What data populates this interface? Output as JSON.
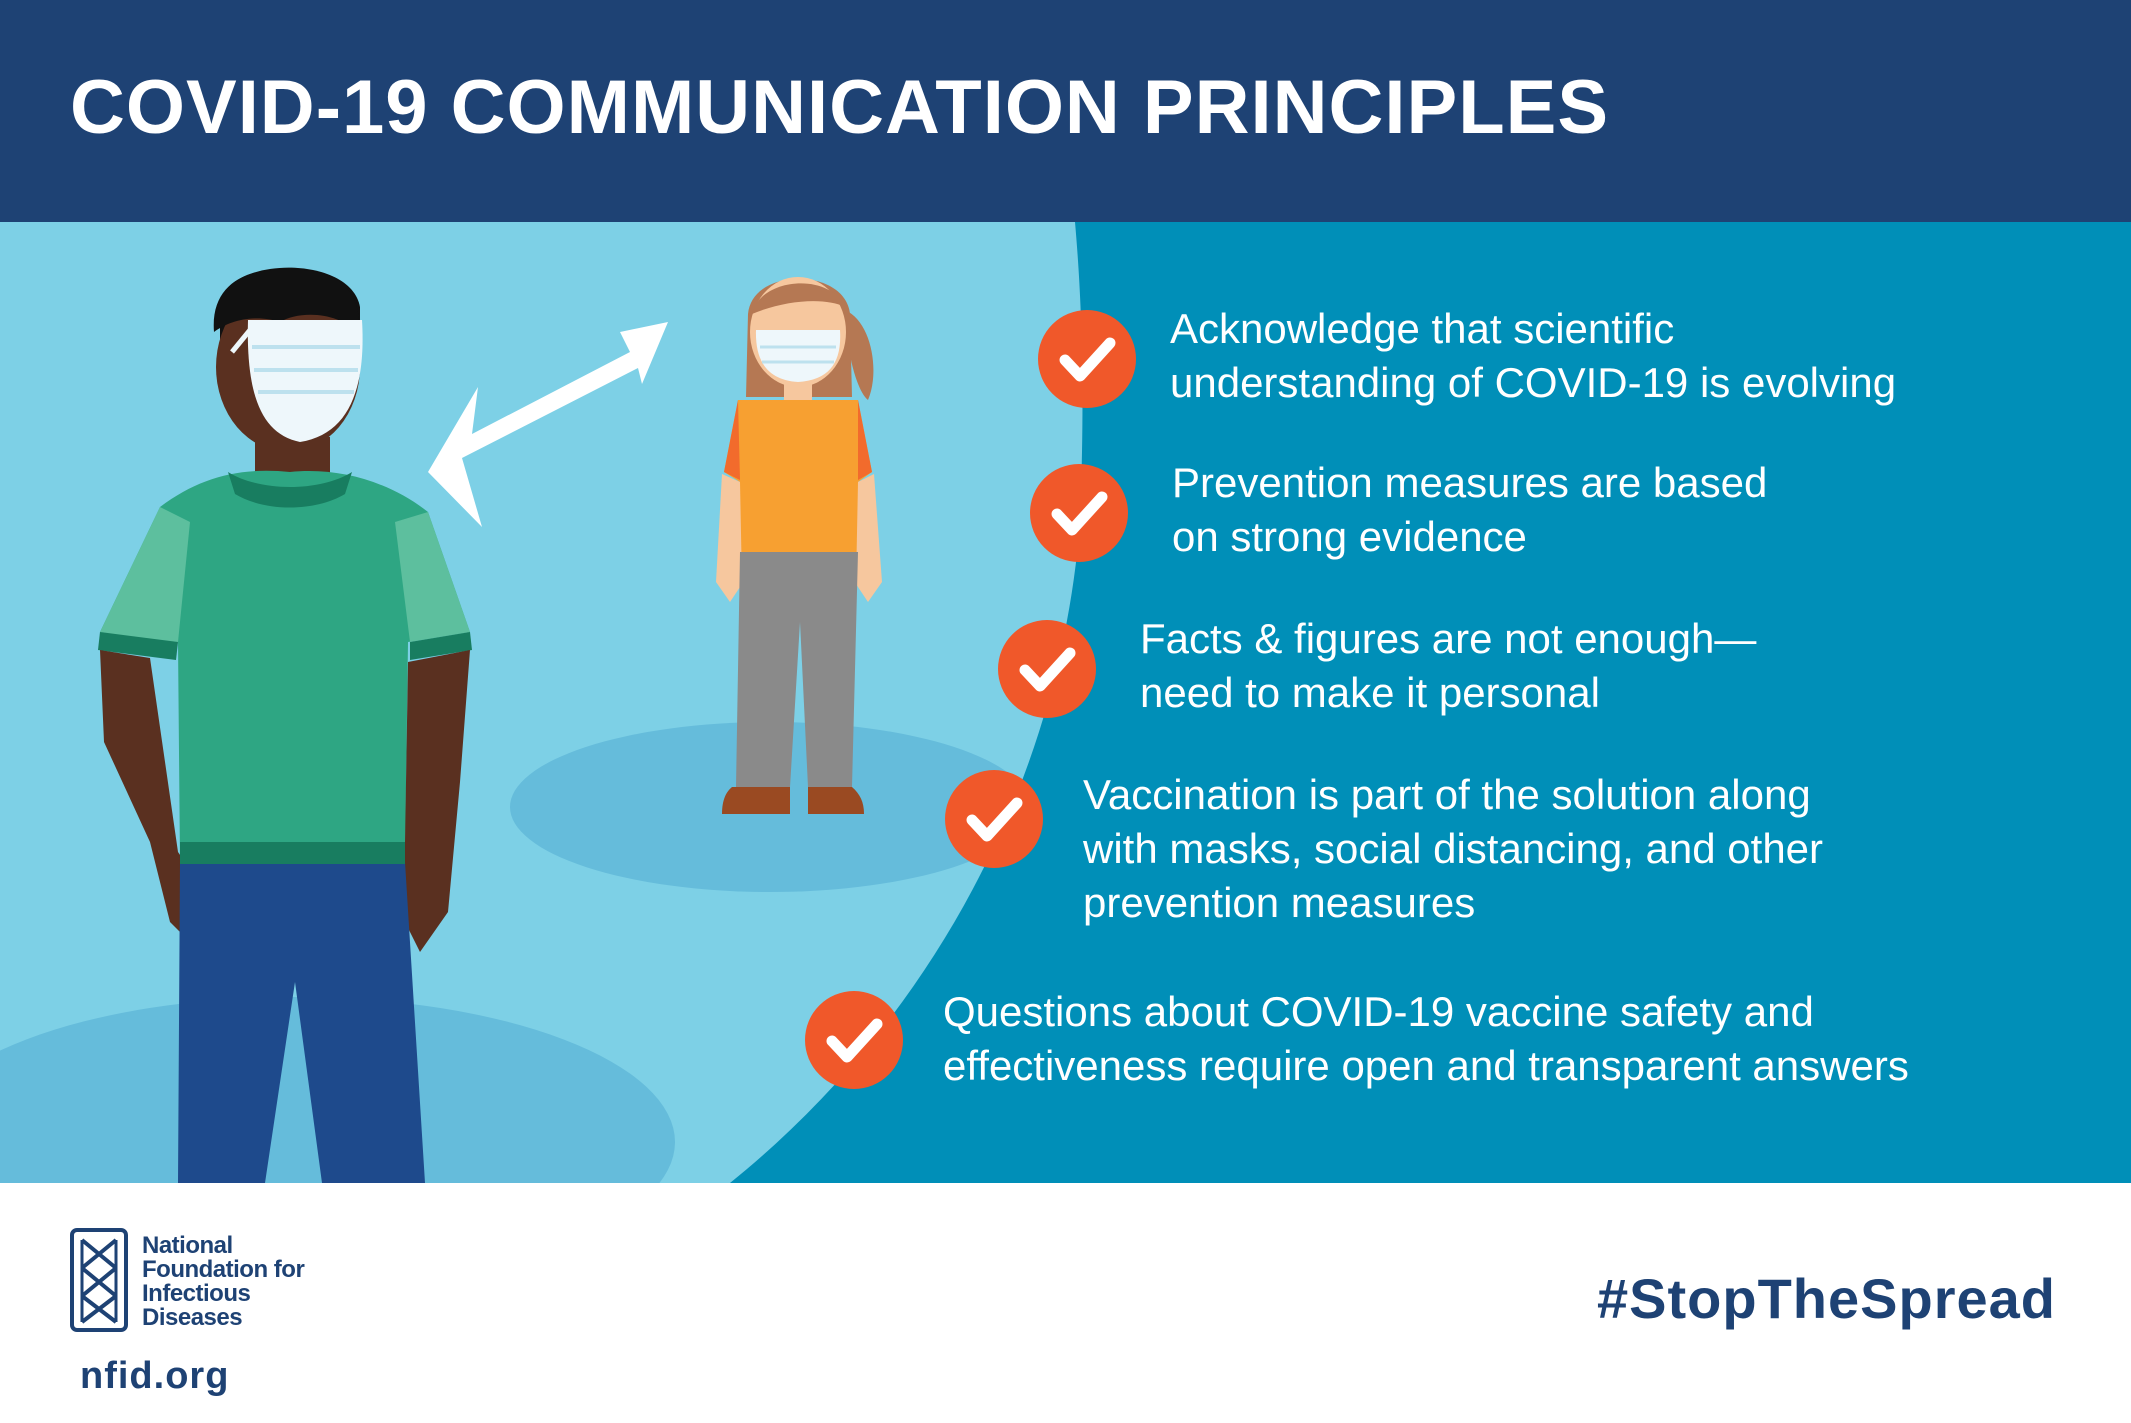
{
  "header": {
    "title": "COVID-19 COMMUNICATION PRINCIPLES"
  },
  "illustration": {
    "people": [
      "person-man-with-mask",
      "person-woman-with-mask"
    ],
    "arrow": "double-arrow-icon"
  },
  "principles": [
    {
      "icon": "check-icon",
      "lines": [
        "Acknowledge that scientific",
        "understanding of COVID-19 is evolving"
      ]
    },
    {
      "icon": "check-icon",
      "lines": [
        "Prevention measures are based",
        "on strong evidence"
      ]
    },
    {
      "icon": "check-icon",
      "lines": [
        "Facts & figures are not enough—",
        "need to make it personal"
      ]
    },
    {
      "icon": "check-icon",
      "lines": [
        "Vaccination is part of the solution along",
        "with masks, social distancing, and other",
        "prevention measures"
      ]
    },
    {
      "icon": "check-icon",
      "lines": [
        "Questions about COVID-19 vaccine safety and",
        "effectiveness require open and transparent answers"
      ]
    }
  ],
  "footer": {
    "logo_text": "National\nFoundation for\nInfectious\nDiseases",
    "website": "nfid.org",
    "hashtag": "#StopTheSpread"
  },
  "colors": {
    "header_navy": "#1e4274",
    "light_blue": "#7dd0e6",
    "teal": "#008fb8",
    "check_orange": "#f0582a"
  }
}
